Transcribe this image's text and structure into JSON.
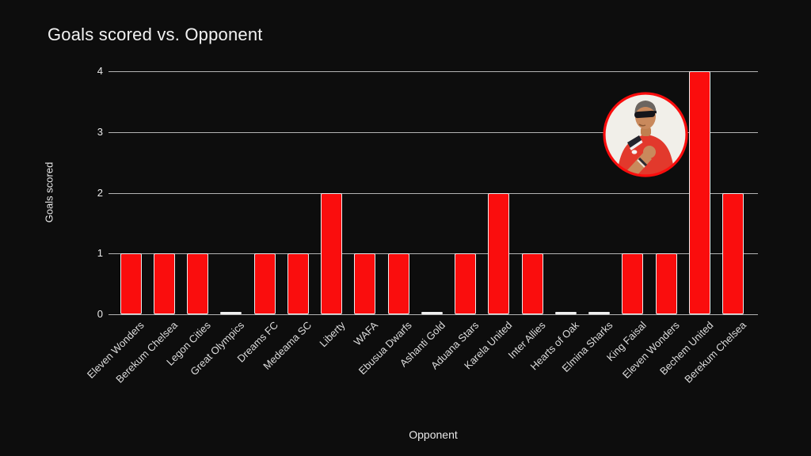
{
  "chart_data": {
    "type": "bar",
    "title": "Goals scored vs. Opponent",
    "xlabel": "Opponent",
    "ylabel": "Goals scored",
    "categories": [
      "Eleven Wonders",
      "Berekum Chelsea",
      "Legon Cities",
      "Great Olympics",
      "Dreams FC",
      "Medeama SC",
      "Liberty",
      "WAFA",
      "Ebusua Dwarfs",
      "Ashanti Gold",
      "Aduana Stars",
      "Karela United",
      "Inter Allies",
      "Hearts of Oak",
      "Elmina Sharks",
      "King Faisal",
      "Eleven Wonders",
      "Bechem United",
      "Berekum Chelsea"
    ],
    "values": [
      1,
      1,
      1,
      0,
      1,
      1,
      2,
      1,
      1,
      0,
      1,
      2,
      1,
      0,
      0,
      1,
      1,
      4,
      2
    ],
    "yticks": [
      0,
      1,
      2,
      3,
      4
    ],
    "ylim": [
      0,
      4
    ],
    "grid": true,
    "legend": "none",
    "bar_color": "#fa0d0d",
    "bar_stroke": "#ececec",
    "gridline_color": "#b3b3b3",
    "background_color": "#0d0d0d",
    "text_color": "#e8e8e8"
  },
  "overlay": {
    "photo_description": "circular photo of a man in red polo shirt wearing sunglasses, fist raised to chest",
    "ring_color": "#fa0d0d"
  }
}
